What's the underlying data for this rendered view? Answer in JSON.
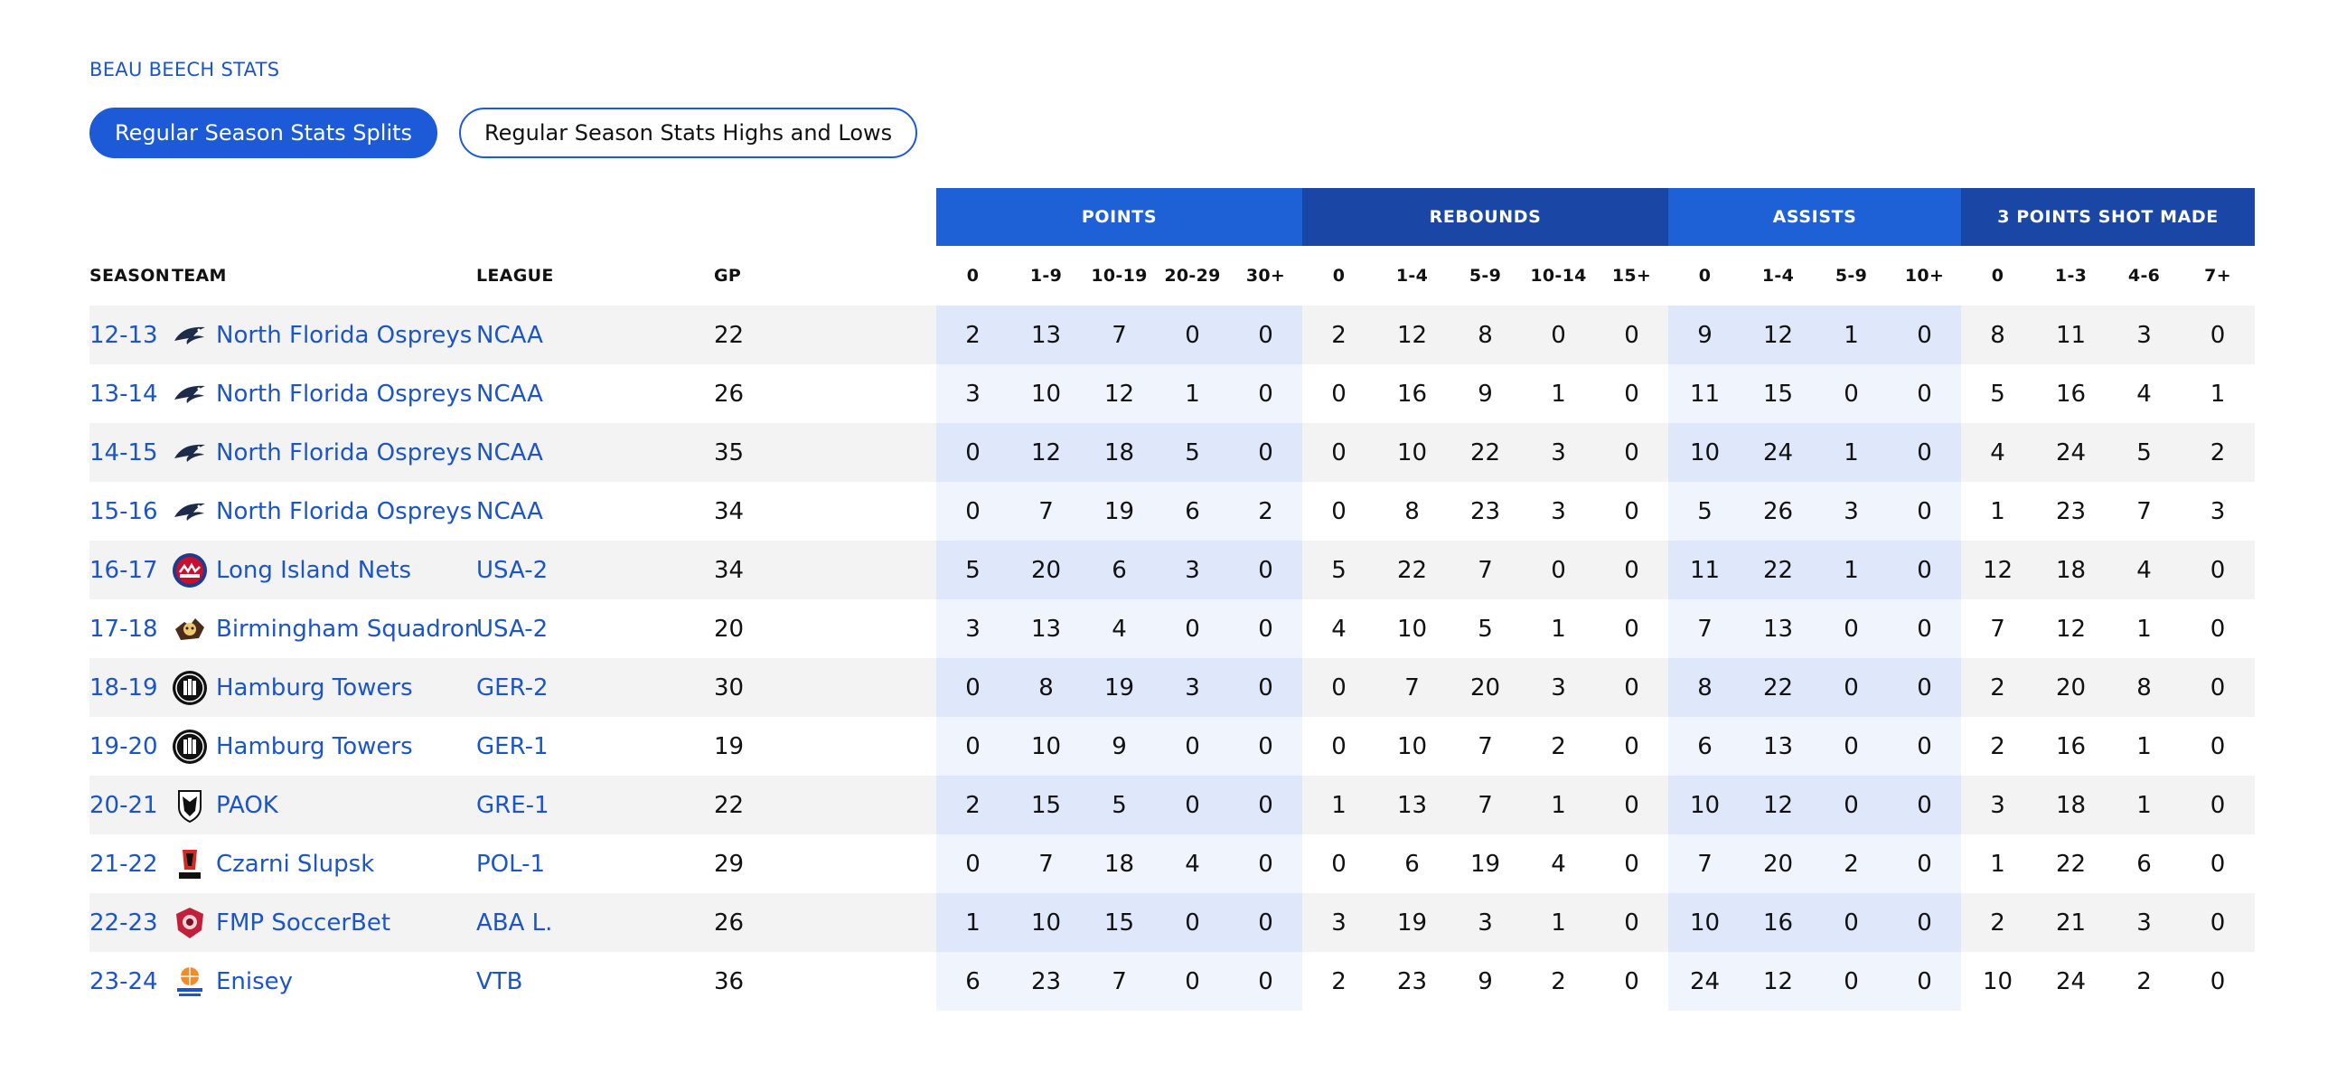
{
  "breadcrumb": "BEAU BEECH STATS",
  "tabs": [
    {
      "label": "Regular Season Stats Splits",
      "active": true
    },
    {
      "label": "Regular Season Stats Highs and Lows",
      "active": false
    }
  ],
  "groups": {
    "points": "POINTS",
    "rebounds": "REBOUNDS",
    "assists": "ASSISTS",
    "three": "3 POINTS SHOT MADE"
  },
  "headers": {
    "season": "SEASON",
    "team": "TEAM",
    "league": "LEAGUE",
    "gp": "GP",
    "points": [
      "0",
      "1-9",
      "10-19",
      "20-29",
      "30+"
    ],
    "rebounds": [
      "0",
      "1-4",
      "5-9",
      "10-14",
      "15+"
    ],
    "assists": [
      "0",
      "1-4",
      "5-9",
      "10+"
    ],
    "three": [
      "0",
      "1-3",
      "4-6",
      "7+"
    ]
  },
  "rows": [
    {
      "season": "12-13",
      "team": "North Florida Ospreys",
      "logo": "osprey-logo-icon",
      "league": "NCAA",
      "gp": "22",
      "points": [
        "2",
        "13",
        "7",
        "0",
        "0"
      ],
      "rebounds": [
        "2",
        "12",
        "8",
        "0",
        "0"
      ],
      "assists": [
        "9",
        "12",
        "1",
        "0"
      ],
      "three": [
        "8",
        "11",
        "3",
        "0"
      ]
    },
    {
      "season": "13-14",
      "team": "North Florida Ospreys",
      "logo": "osprey-logo-icon",
      "league": "NCAA",
      "gp": "26",
      "points": [
        "3",
        "10",
        "12",
        "1",
        "0"
      ],
      "rebounds": [
        "0",
        "16",
        "9",
        "1",
        "0"
      ],
      "assists": [
        "11",
        "15",
        "0",
        "0"
      ],
      "three": [
        "5",
        "16",
        "4",
        "1"
      ]
    },
    {
      "season": "14-15",
      "team": "North Florida Ospreys",
      "logo": "osprey-logo-icon",
      "league": "NCAA",
      "gp": "35",
      "points": [
        "0",
        "12",
        "18",
        "5",
        "0"
      ],
      "rebounds": [
        "0",
        "10",
        "22",
        "3",
        "0"
      ],
      "assists": [
        "10",
        "24",
        "1",
        "0"
      ],
      "three": [
        "4",
        "24",
        "5",
        "2"
      ]
    },
    {
      "season": "15-16",
      "team": "North Florida Ospreys",
      "logo": "osprey-logo-icon",
      "league": "NCAA",
      "gp": "34",
      "points": [
        "0",
        "7",
        "19",
        "6",
        "2"
      ],
      "rebounds": [
        "0",
        "8",
        "23",
        "3",
        "0"
      ],
      "assists": [
        "5",
        "26",
        "3",
        "0"
      ],
      "three": [
        "1",
        "23",
        "7",
        "3"
      ]
    },
    {
      "season": "16-17",
      "team": "Long Island Nets",
      "logo": "nets-logo-icon",
      "league": "USA-2",
      "gp": "34",
      "points": [
        "5",
        "20",
        "6",
        "3",
        "0"
      ],
      "rebounds": [
        "5",
        "22",
        "7",
        "0",
        "0"
      ],
      "assists": [
        "11",
        "22",
        "1",
        "0"
      ],
      "three": [
        "12",
        "18",
        "4",
        "0"
      ]
    },
    {
      "season": "17-18",
      "team": "Birmingham Squadron",
      "logo": "squadron-logo-icon",
      "league": "USA-2",
      "gp": "20",
      "points": [
        "3",
        "13",
        "4",
        "0",
        "0"
      ],
      "rebounds": [
        "4",
        "10",
        "5",
        "1",
        "0"
      ],
      "assists": [
        "7",
        "13",
        "0",
        "0"
      ],
      "three": [
        "7",
        "12",
        "1",
        "0"
      ]
    },
    {
      "season": "18-19",
      "team": "Hamburg Towers",
      "logo": "towers-logo-icon",
      "league": "GER-2",
      "gp": "30",
      "points": [
        "0",
        "8",
        "19",
        "3",
        "0"
      ],
      "rebounds": [
        "0",
        "7",
        "20",
        "3",
        "0"
      ],
      "assists": [
        "8",
        "22",
        "0",
        "0"
      ],
      "three": [
        "2",
        "20",
        "8",
        "0"
      ]
    },
    {
      "season": "19-20",
      "team": "Hamburg Towers",
      "logo": "towers-logo-icon",
      "league": "GER-1",
      "gp": "19",
      "points": [
        "0",
        "10",
        "9",
        "0",
        "0"
      ],
      "rebounds": [
        "0",
        "10",
        "7",
        "2",
        "0"
      ],
      "assists": [
        "6",
        "13",
        "0",
        "0"
      ],
      "three": [
        "2",
        "16",
        "1",
        "0"
      ]
    },
    {
      "season": "20-21",
      "team": "PAOK",
      "logo": "paok-logo-icon",
      "league": "GRE-1",
      "gp": "22",
      "points": [
        "2",
        "15",
        "5",
        "0",
        "0"
      ],
      "rebounds": [
        "1",
        "13",
        "7",
        "1",
        "0"
      ],
      "assists": [
        "10",
        "12",
        "0",
        "0"
      ],
      "three": [
        "3",
        "18",
        "1",
        "0"
      ]
    },
    {
      "season": "21-22",
      "team": "Czarni Slupsk",
      "logo": "czarni-logo-icon",
      "league": "POL-1",
      "gp": "29",
      "points": [
        "0",
        "7",
        "18",
        "4",
        "0"
      ],
      "rebounds": [
        "0",
        "6",
        "19",
        "4",
        "0"
      ],
      "assists": [
        "7",
        "20",
        "2",
        "0"
      ],
      "three": [
        "1",
        "22",
        "6",
        "0"
      ]
    },
    {
      "season": "22-23",
      "team": "FMP SoccerBet",
      "logo": "fmp-logo-icon",
      "league": "ABA L.",
      "gp": "26",
      "points": [
        "1",
        "10",
        "15",
        "0",
        "0"
      ],
      "rebounds": [
        "3",
        "19",
        "3",
        "1",
        "0"
      ],
      "assists": [
        "10",
        "16",
        "0",
        "0"
      ],
      "three": [
        "2",
        "21",
        "3",
        "0"
      ]
    },
    {
      "season": "23-24",
      "team": "Enisey",
      "logo": "enisey-logo-icon",
      "league": "VTB",
      "gp": "36",
      "points": [
        "6",
        "23",
        "7",
        "0",
        "0"
      ],
      "rebounds": [
        "2",
        "23",
        "9",
        "2",
        "0"
      ],
      "assists": [
        "24",
        "12",
        "0",
        "0"
      ],
      "three": [
        "10",
        "24",
        "2",
        "0"
      ]
    }
  ],
  "colors": {
    "accent": "#1d5ad7",
    "group_dark": "#1a47a6",
    "link": "#1b55c8",
    "row_alt": "#f3f3f3",
    "highlight_odd": "#dfe8fb",
    "highlight_even": "#eff4fd"
  }
}
